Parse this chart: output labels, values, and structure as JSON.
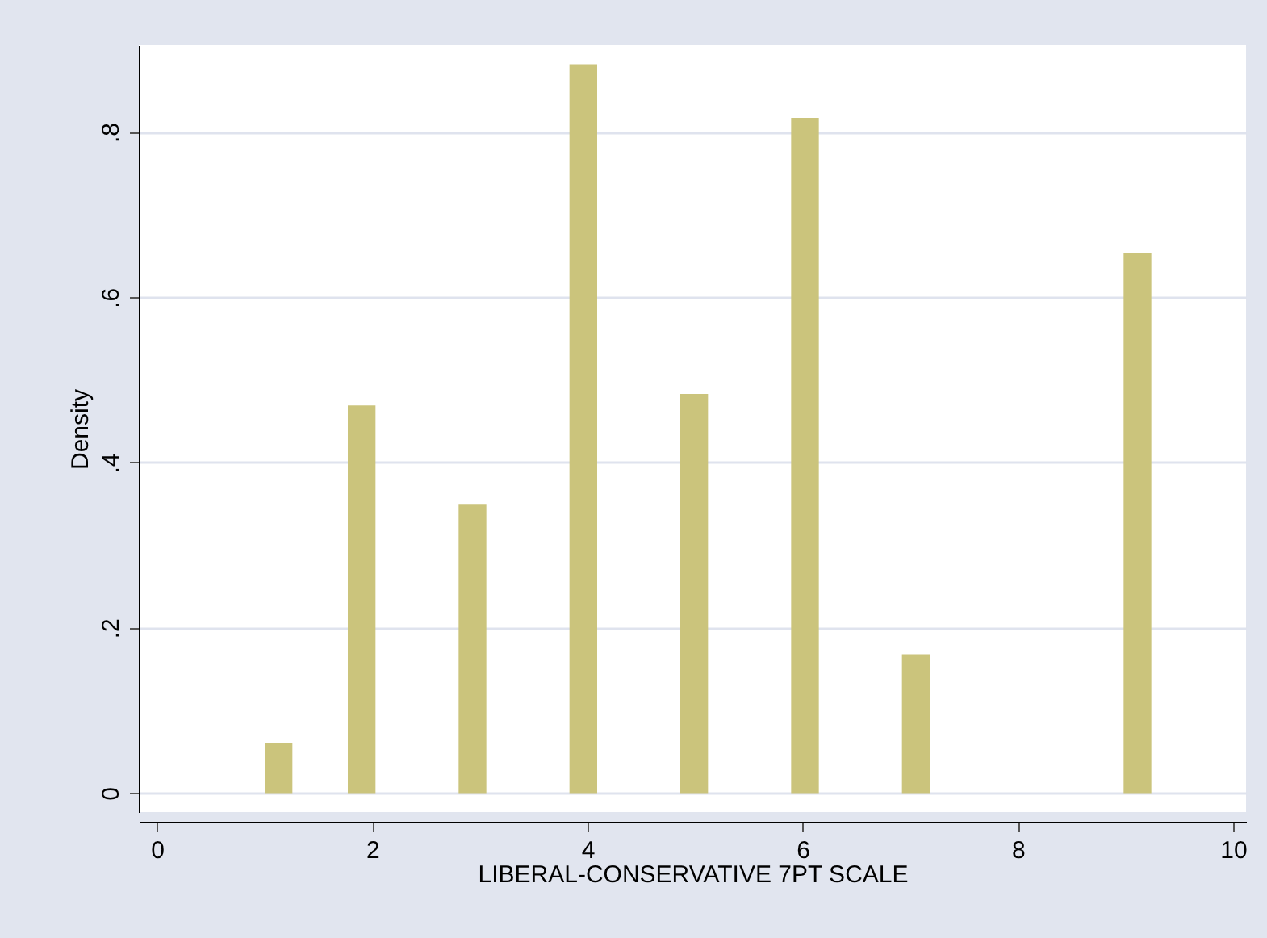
{
  "chart_data": {
    "type": "histogram",
    "xlabel": "LIBERAL-CONSERVATIVE 7PT SCALE",
    "ylabel": "Density",
    "bins": [
      1,
      1.2575,
      1.515,
      1.7725,
      2.03,
      2.2875,
      2.545,
      2.8025,
      3.06,
      3.3175,
      3.575,
      3.8325,
      4.09,
      4.3475,
      4.605,
      4.8625,
      5.12,
      5.3775,
      5.635,
      5.8925,
      6.15,
      6.4075,
      6.665,
      6.9225,
      7.18,
      7.4375,
      7.695,
      7.9525,
      8.21,
      8.4675,
      8.725,
      8.9825,
      9.24
    ],
    "values": [
      0.061,
      0,
      0,
      0.469,
      0,
      0,
      0,
      0.35,
      0,
      0,
      0,
      0.882,
      0,
      0,
      0,
      0.483,
      0,
      0,
      0,
      0.817,
      0,
      0,
      0,
      0.168,
      0,
      0,
      0,
      0,
      0,
      0,
      0,
      0.653
    ],
    "color": "#cbc47c",
    "xlim": [
      -0.17,
      10.12
    ],
    "xticks": [
      0,
      2,
      4,
      6,
      8,
      10
    ],
    "ylim": [
      -0.023,
      0.905
    ],
    "yticks": [
      {
        "value": 0,
        "label": "0"
      },
      {
        "value": 0.2,
        "label": ".2"
      },
      {
        "value": 0.4,
        "label": ".4"
      },
      {
        "value": 0.6,
        "label": ".6"
      },
      {
        "value": 0.8,
        "label": ".8"
      }
    ],
    "grid": "y"
  }
}
